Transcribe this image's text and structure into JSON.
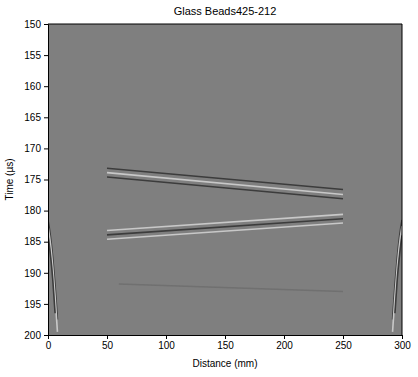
{
  "chart_data": {
    "type": "line",
    "title": "Glass Beads425-212",
    "xlabel": "Distance (mm)",
    "ylabel": "Time (µs)",
    "xlim": [
      0,
      300
    ],
    "xticks": [
      0,
      50,
      100,
      150,
      200,
      250,
      300
    ],
    "ylim": [
      150,
      200
    ],
    "yticks": [
      150,
      155,
      160,
      165,
      170,
      175,
      180,
      185,
      190,
      195,
      200
    ],
    "grid": false,
    "series": [
      {
        "color": "#3c3c3c",
        "x": [
          50,
          250
        ],
        "values": [
          173.2,
          176.6
        ]
      },
      {
        "color": "#c8c8c8",
        "x": [
          50,
          250
        ],
        "values": [
          173.9,
          177.4
        ]
      },
      {
        "color": "#3c3c3c",
        "x": [
          50,
          250
        ],
        "values": [
          174.6,
          178.1
        ]
      },
      {
        "color": "#c8c8c8",
        "x": [
          50,
          250
        ],
        "values": [
          183.2,
          180.6
        ]
      },
      {
        "color": "#3c3c3c",
        "x": [
          50,
          250
        ],
        "values": [
          183.9,
          181.3
        ]
      },
      {
        "color": "#c8c8c8",
        "x": [
          50,
          250
        ],
        "values": [
          184.6,
          182.0
        ]
      },
      {
        "color": "#707070",
        "x": [
          60,
          250
        ],
        "values": [
          191.8,
          193.0
        ]
      },
      {
        "color": "#3c3c3c",
        "x": [
          0,
          2,
          4,
          6,
          8
        ],
        "values": [
          181.5,
          184,
          187.5,
          192,
          197.5
        ]
      },
      {
        "color": "#c8c8c8",
        "x": [
          0,
          2,
          4,
          6,
          8
        ],
        "values": [
          182.5,
          185.2,
          189,
          193.8,
          199.5
        ]
      },
      {
        "color": "#3c3c3c",
        "x": [
          0,
          2,
          4,
          6
        ],
        "values": [
          184,
          187,
          191,
          196.5
        ]
      },
      {
        "color": "#3c3c3c",
        "x": [
          300,
          298,
          296,
          294,
          292
        ],
        "values": [
          181.5,
          184,
          187.5,
          192,
          197.5
        ]
      },
      {
        "color": "#c8c8c8",
        "x": [
          300,
          298,
          296,
          294,
          292
        ],
        "values": [
          182.5,
          185.2,
          189,
          193.8,
          199.5
        ]
      },
      {
        "color": "#3c3c3c",
        "x": [
          300,
          298,
          296,
          294
        ],
        "values": [
          184,
          187,
          191,
          196.5
        ]
      }
    ]
  }
}
